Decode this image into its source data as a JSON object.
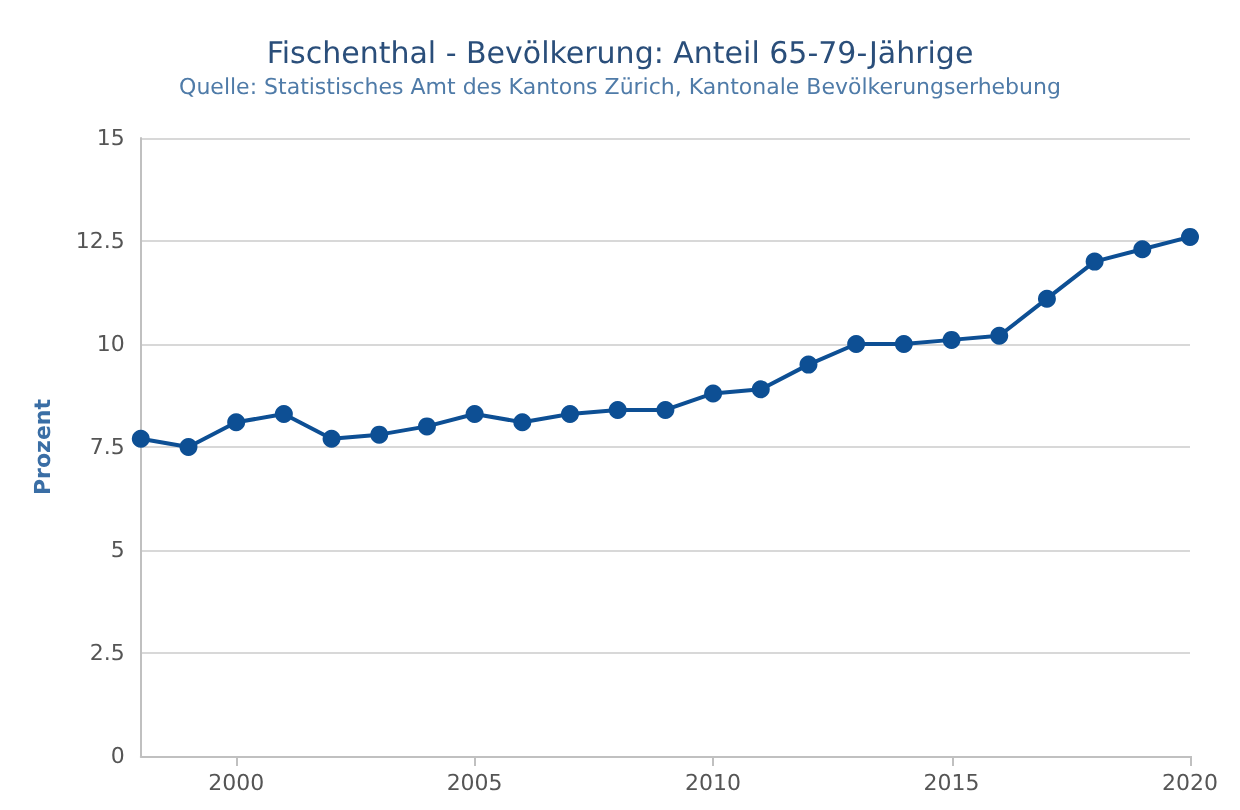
{
  "chart_data": {
    "type": "line",
    "title": "Fischenthal - Bevölkerung: Anteil 65-79-Jährige",
    "subtitle": "Quelle: Statistisches Amt des Kantons Zürich, Kantonale Bevölkerungserhebung",
    "ylabel": "Prozent",
    "x": [
      1998,
      1999,
      2000,
      2001,
      2002,
      2003,
      2004,
      2005,
      2006,
      2007,
      2008,
      2009,
      2010,
      2011,
      2012,
      2013,
      2014,
      2015,
      2016,
      2017,
      2018,
      2019,
      2020
    ],
    "series": [
      {
        "color": "#0d4f94",
        "values": [
          7.7,
          7.5,
          8.1,
          8.3,
          7.7,
          7.8,
          8.0,
          8.3,
          8.1,
          8.3,
          8.4,
          8.4,
          8.8,
          8.9,
          9.5,
          10.0,
          10.0,
          10.1,
          10.2,
          11.1,
          12.0,
          12.3,
          12.6
        ]
      }
    ],
    "xlim": [
      1998,
      2020
    ],
    "xticks": [
      2000,
      2005,
      2010,
      2015,
      2020
    ],
    "ylim": [
      0,
      15
    ],
    "yticks": [
      0,
      2.5,
      5,
      7.5,
      10,
      12.5,
      15
    ],
    "grid": "y",
    "marker": "circle",
    "line_style": "solid"
  }
}
